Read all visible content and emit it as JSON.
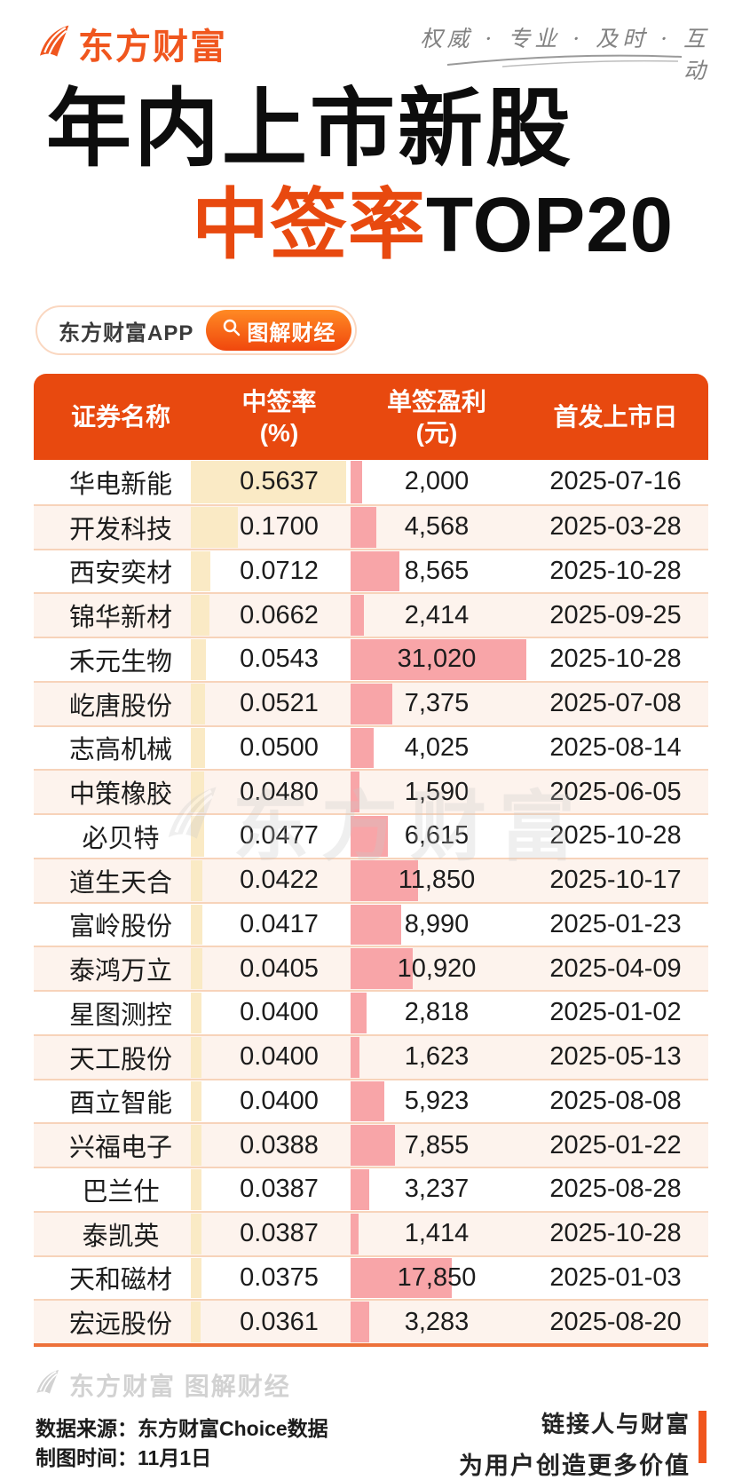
{
  "brand": {
    "logo_text": "东方财富",
    "slogan": "权威 · 专业 · 及时 · 互动"
  },
  "title": {
    "line1": "年内上市新股",
    "line2_highlight": "中签率",
    "line2_rest": "TOP20"
  },
  "badge": {
    "app_label": "东方财富APP",
    "tag_label": "图解财经"
  },
  "table": {
    "columns": [
      {
        "line1": "证券名称",
        "line2": ""
      },
      {
        "line1": "中签率",
        "line2": "(%)"
      },
      {
        "line1": "单签盈利",
        "line2": "(元)"
      },
      {
        "line1": "首发上市日",
        "line2": ""
      }
    ]
  },
  "chart_data": {
    "type": "table",
    "title": "年内上市新股 中签率TOP20",
    "columns": [
      "证券名称",
      "中签率(%)",
      "单签盈利(元)",
      "首发上市日"
    ],
    "bar_series": [
      {
        "name": "中签率(%)",
        "color": "#faeac5",
        "max": 0.5637
      },
      {
        "name": "单签盈利(元)",
        "color": "#f8a5a8",
        "max": 31020
      }
    ],
    "rows": [
      {
        "name": "华电新能",
        "rate": "0.5637",
        "profit": "2,000",
        "date": "2025-07-16"
      },
      {
        "name": "开发科技",
        "rate": "0.1700",
        "profit": "4,568",
        "date": "2025-03-28"
      },
      {
        "name": "西安奕材",
        "rate": "0.0712",
        "profit": "8,565",
        "date": "2025-10-28"
      },
      {
        "name": "锦华新材",
        "rate": "0.0662",
        "profit": "2,414",
        "date": "2025-09-25"
      },
      {
        "name": "禾元生物",
        "rate": "0.0543",
        "profit": "31,020",
        "date": "2025-10-28"
      },
      {
        "name": "屹唐股份",
        "rate": "0.0521",
        "profit": "7,375",
        "date": "2025-07-08"
      },
      {
        "name": "志高机械",
        "rate": "0.0500",
        "profit": "4,025",
        "date": "2025-08-14"
      },
      {
        "name": "中策橡胶",
        "rate": "0.0480",
        "profit": "1,590",
        "date": "2025-06-05"
      },
      {
        "name": "必贝特",
        "rate": "0.0477",
        "profit": "6,615",
        "date": "2025-10-28"
      },
      {
        "name": "道生天合",
        "rate": "0.0422",
        "profit": "11,850",
        "date": "2025-10-17"
      },
      {
        "name": "富岭股份",
        "rate": "0.0417",
        "profit": "8,990",
        "date": "2025-01-23"
      },
      {
        "name": "泰鸿万立",
        "rate": "0.0405",
        "profit": "10,920",
        "date": "2025-04-09"
      },
      {
        "name": "星图测控",
        "rate": "0.0400",
        "profit": "2,818",
        "date": "2025-01-02"
      },
      {
        "name": "天工股份",
        "rate": "0.0400",
        "profit": "1,623",
        "date": "2025-05-13"
      },
      {
        "name": "酉立智能",
        "rate": "0.0400",
        "profit": "5,923",
        "date": "2025-08-08"
      },
      {
        "name": "兴福电子",
        "rate": "0.0388",
        "profit": "7,855",
        "date": "2025-01-22"
      },
      {
        "name": "巴兰仕",
        "rate": "0.0387",
        "profit": "3,237",
        "date": "2025-08-28"
      },
      {
        "name": "泰凯英",
        "rate": "0.0387",
        "profit": "1,414",
        "date": "2025-10-28"
      },
      {
        "name": "天和磁材",
        "rate": "0.0375",
        "profit": "17,850",
        "date": "2025-01-03"
      },
      {
        "name": "宏远股份",
        "rate": "0.0361",
        "profit": "3,283",
        "date": "2025-08-20"
      }
    ]
  },
  "watermark": {
    "center_text": "东方财富",
    "footer_text": "东方财富 图解财经"
  },
  "footer": {
    "source_line": "数据来源：东方财富Choice数据",
    "time_line": "制图时间：11月1日",
    "slogan_line1": "链接人与财富",
    "slogan_line2": "为用户创造更多价值"
  },
  "colors": {
    "accent": "#e8490f",
    "logo": "#f0561e",
    "rate_bar": "#faeac5",
    "profit_bar": "#f8a5a8",
    "alt_row": "#fdf3ed"
  }
}
